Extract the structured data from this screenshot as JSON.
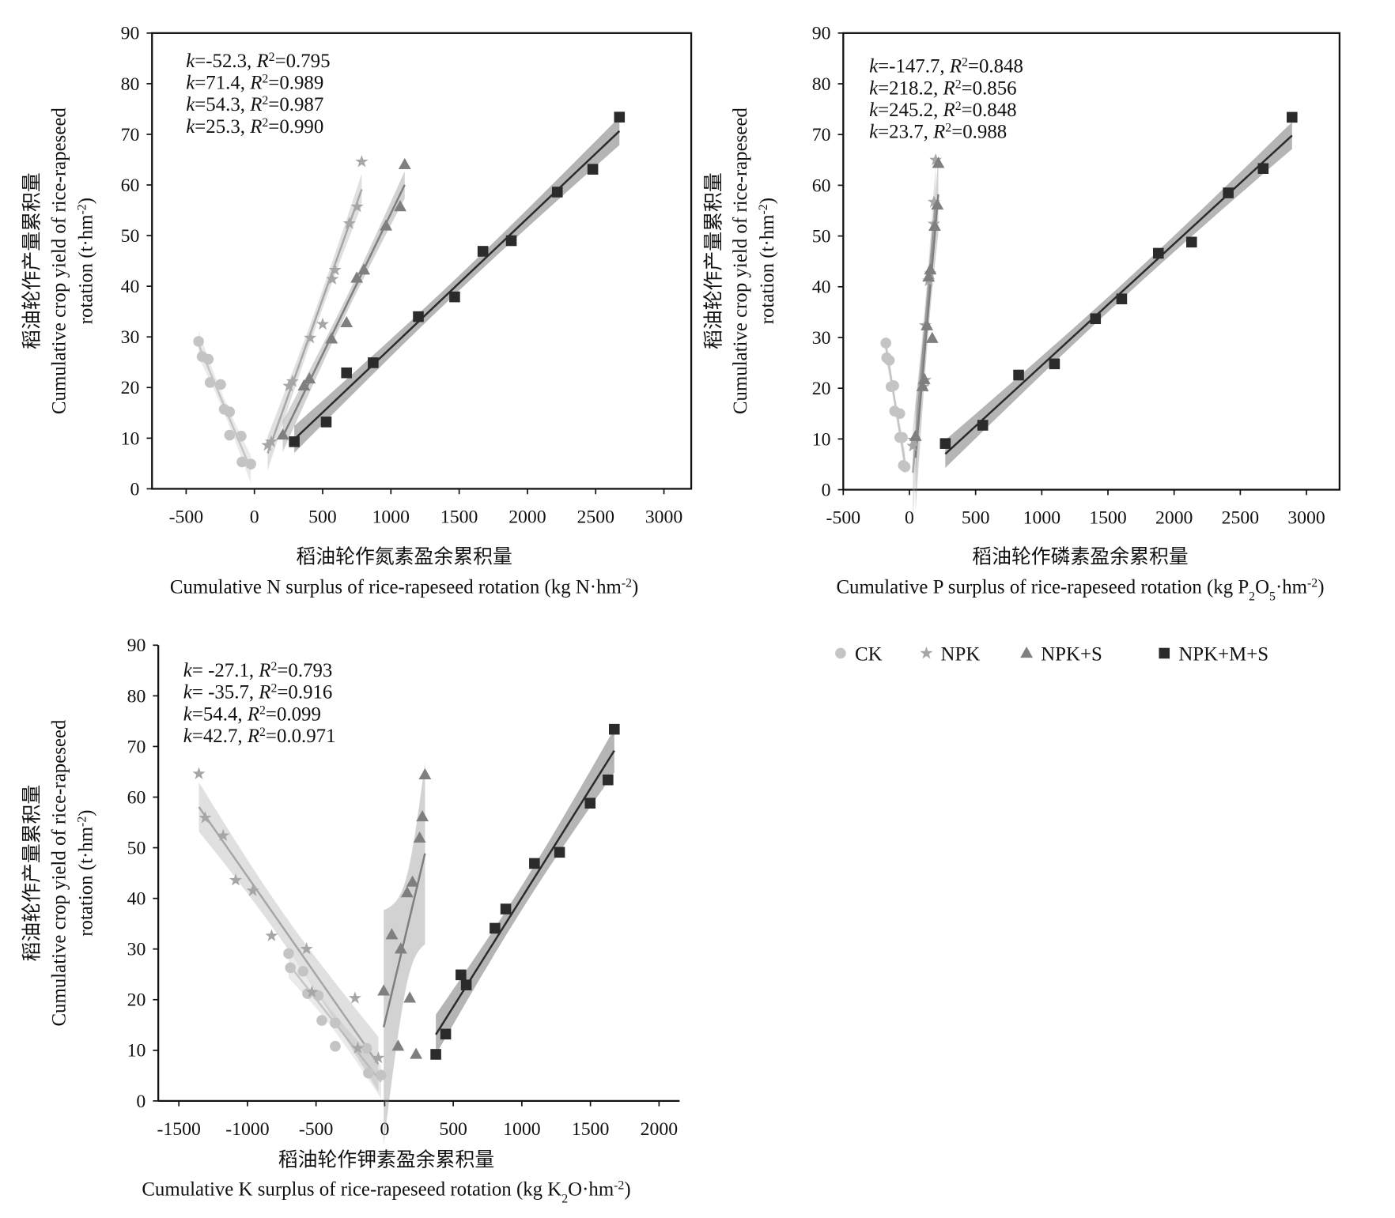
{
  "chart_data": [
    {
      "type": "scatter",
      "frame": true,
      "trendline": "linear",
      "xlim": [
        -750,
        3200
      ],
      "ylim": [
        0,
        90
      ],
      "xticks": [
        -500,
        0,
        500,
        1000,
        1500,
        2000,
        2500,
        3000
      ],
      "yticks": [
        0,
        10,
        20,
        30,
        40,
        50,
        60,
        70,
        80,
        90
      ],
      "ylabel": [
        [
          {
            "text": "稻油轮作产量累积量"
          }
        ],
        [
          {
            "text": "Cumulative crop yield of rice-rapeseed"
          }
        ],
        [
          {
            "text": "rotation (t·hm"
          },
          {
            "text": "-2",
            "position": "super"
          },
          {
            "text": ")"
          }
        ]
      ],
      "xlabel": [
        [
          {
            "text": "稻油轮作氮素盈余累积量"
          }
        ],
        [
          {
            "text": "Cumulative N surplus of rice-rapeseed rotation (kg N·hm"
          },
          {
            "text": "-2",
            "position": "super"
          },
          {
            "text": ")"
          }
        ]
      ],
      "annotations": [
        [
          {
            "text": "k",
            "style": "italic"
          },
          {
            "text": "=-52.3, "
          },
          {
            "text": "R",
            "style": "italic"
          },
          {
            "text": "2",
            "position": "super"
          },
          {
            "text": "=0.795"
          }
        ],
        [
          {
            "text": "k",
            "style": "italic"
          },
          {
            "text": "=71.4, "
          },
          {
            "text": "R",
            "style": "italic"
          },
          {
            "text": "2",
            "position": "super"
          },
          {
            "text": "=0.989"
          }
        ],
        [
          {
            "text": "k",
            "style": "italic"
          },
          {
            "text": "=54.3, "
          },
          {
            "text": "R",
            "style": "italic"
          },
          {
            "text": "2",
            "position": "super"
          },
          {
            "text": "=0.987"
          }
        ],
        [
          {
            "text": "k",
            "style": "italic"
          },
          {
            "text": "=25.3, "
          },
          {
            "text": "R",
            "style": "italic"
          },
          {
            "text": "2",
            "position": "super"
          },
          {
            "text": "=0.990"
          }
        ]
      ],
      "series": [
        {
          "name": "CK",
          "color": "#c4c4c4",
          "marker": "circle",
          "x": [
            -409,
            -383,
            -338,
            -325,
            -247,
            -221,
            -182,
            -182,
            -97,
            -91,
            -26
          ],
          "values": [
            29.1,
            26.1,
            25.6,
            21.0,
            20.6,
            15.7,
            15.2,
            10.6,
            10.4,
            5.3,
            4.9
          ]
        },
        {
          "name": "NPK",
          "color": "#a6a6a6",
          "marker": "star",
          "x": [
            97,
            123,
            253,
            279,
            409,
            500,
            571,
            591,
            695,
            753,
            786
          ],
          "values": [
            8.6,
            9.3,
            20.3,
            21.2,
            29.8,
            32.5,
            41.4,
            43.2,
            52.4,
            55.7,
            64.6
          ]
        },
        {
          "name": "NPK+S",
          "color": "#7f7f7f",
          "marker": "triangle",
          "x": [
            208,
            363,
            403,
            565,
            675,
            750,
            802,
            964,
            1068,
            1101
          ],
          "values": [
            10.6,
            20.3,
            21.7,
            29.6,
            32.8,
            41.6,
            43.2,
            51.9,
            55.7,
            64.0
          ]
        },
        {
          "name": "NPK+M+S",
          "color": "#2b2b2b",
          "marker": "square",
          "x": [
            292,
            526,
            675,
            870,
            1201,
            1467,
            1674,
            1882,
            2219,
            2479,
            2674
          ],
          "values": [
            9.3,
            13.2,
            22.9,
            24.9,
            34.0,
            37.9,
            46.9,
            49.0,
            58.6,
            63.1,
            73.4
          ]
        }
      ]
    },
    {
      "type": "scatter",
      "frame": true,
      "trendline": "linear",
      "legend": "below",
      "xlim": [
        -500,
        3250
      ],
      "ylim": [
        0,
        90
      ],
      "xticks": [
        -500,
        0,
        500,
        1000,
        1500,
        2000,
        2500,
        3000
      ],
      "yticks": [
        0,
        10,
        20,
        30,
        40,
        50,
        60,
        70,
        80,
        90
      ],
      "ylabel": [
        [
          {
            "text": "稻油轮作产量累积量"
          }
        ],
        [
          {
            "text": "Cumulative crop yield of rice-rapeseed"
          }
        ],
        [
          {
            "text": "rotation (t·hm"
          },
          {
            "text": "-2",
            "position": "super"
          },
          {
            "text": ")"
          }
        ]
      ],
      "xlabel": [
        [
          {
            "text": "稻油轮作磷素盈余累积量"
          }
        ],
        [
          {
            "text": "Cumulative P surplus of rice-rapeseed rotation (kg P"
          },
          {
            "text": "2",
            "position": "sub"
          },
          {
            "text": "O"
          },
          {
            "text": "5",
            "position": "sub"
          },
          {
            "text": "·hm"
          },
          {
            "text": "-2",
            "position": "super"
          },
          {
            "text": ")"
          }
        ]
      ],
      "annotations": [
        [
          {
            "text": "k",
            "style": "italic"
          },
          {
            "text": "=-147.7, "
          },
          {
            "text": "R",
            "style": "italic"
          },
          {
            "text": "2",
            "position": "super"
          },
          {
            "text": "=0.848"
          }
        ],
        [
          {
            "text": "k",
            "style": "italic"
          },
          {
            "text": "=218.2, "
          },
          {
            "text": "R",
            "style": "italic"
          },
          {
            "text": "2",
            "position": "super"
          },
          {
            "text": "=0.856"
          }
        ],
        [
          {
            "text": "k",
            "style": "italic"
          },
          {
            "text": "=245.2, "
          },
          {
            "text": "R",
            "style": "italic"
          },
          {
            "text": "2",
            "position": "super"
          },
          {
            "text": "=0.848"
          }
        ],
        [
          {
            "text": "k",
            "style": "italic"
          },
          {
            "text": "=23.7, "
          },
          {
            "text": "R",
            "style": "italic"
          },
          {
            "text": "2",
            "position": "super"
          },
          {
            "text": "=0.988"
          }
        ]
      ],
      "series": [
        {
          "name": "CK",
          "color": "#c4c4c4",
          "marker": "circle",
          "x": [
            -178,
            -172,
            -152,
            -139,
            -119,
            -112,
            -73,
            -73,
            -53,
            -46,
            -33
          ],
          "values": [
            28.9,
            26.0,
            25.5,
            20.3,
            20.5,
            15.5,
            15.0,
            10.3,
            10.3,
            4.8,
            4.5
          ]
        },
        {
          "name": "NPK",
          "color": "#a6a6a6",
          "marker": "star",
          "x": [
            26,
            33,
            106,
            119,
            119,
            145,
            158,
            185,
            185,
            198
          ],
          "values": [
            8.6,
            9.8,
            20.3,
            21.6,
            32.4,
            41.2,
            42.6,
            52.4,
            56.7,
            65.0
          ]
        },
        {
          "name": "NPK+S",
          "color": "#7f7f7f",
          "marker": "triangle",
          "x": [
            46,
            99,
            112,
            132,
            145,
            158,
            172,
            191,
            211,
            218
          ],
          "values": [
            10.5,
            20.3,
            21.7,
            32.3,
            41.9,
            43.3,
            29.8,
            51.9,
            56.1,
            64.3
          ]
        },
        {
          "name": "NPK+M+S",
          "color": "#2b2b2b",
          "marker": "square",
          "x": [
            271,
            554,
            825,
            1096,
            1406,
            1604,
            1881,
            2132,
            2409,
            2673,
            2891
          ],
          "values": [
            9.1,
            12.7,
            22.6,
            24.8,
            33.7,
            37.6,
            46.6,
            48.8,
            58.5,
            63.3,
            73.4
          ]
        }
      ]
    },
    {
      "type": "scatter",
      "frame": false,
      "trendline": "linear",
      "xlim": [
        -1650,
        2150
      ],
      "ylim": [
        0,
        90
      ],
      "xticks": [
        -1500,
        -1000,
        -500,
        0,
        500,
        1000,
        1500,
        2000
      ],
      "yticks": [
        0,
        10,
        20,
        30,
        40,
        50,
        60,
        70,
        80,
        90
      ],
      "ylabel": [
        [
          {
            "text": "稻油轮作产量累积量"
          }
        ],
        [
          {
            "text": "Cumulative crop yield of rice-rapeseed"
          }
        ],
        [
          {
            "text": "rotation (t·hm"
          },
          {
            "text": "-2",
            "position": "super"
          },
          {
            "text": ")"
          }
        ]
      ],
      "xlabel": [
        [
          {
            "text": "稻油轮作钾素盈余累积量"
          }
        ],
        [
          {
            "text": "Cumulative K surplus of rice-rapeseed rotation (kg K"
          },
          {
            "text": "2",
            "position": "sub"
          },
          {
            "text": "O·hm"
          },
          {
            "text": "-2",
            "position": "super"
          },
          {
            "text": ")"
          }
        ]
      ],
      "annotations": [
        [
          {
            "text": "k",
            "style": "italic"
          },
          {
            "text": "= -27.1, "
          },
          {
            "text": "R",
            "style": "italic"
          },
          {
            "text": "2",
            "position": "super"
          },
          {
            "text": "=0.793"
          }
        ],
        [
          {
            "text": "k",
            "style": "italic"
          },
          {
            "text": "= -35.7, "
          },
          {
            "text": "R",
            "style": "italic"
          },
          {
            "text": "2",
            "position": "super"
          },
          {
            "text": "=0.916"
          }
        ],
        [
          {
            "text": "k",
            "style": "italic"
          },
          {
            "text": "=54.4, "
          },
          {
            "text": "R",
            "style": "italic"
          },
          {
            "text": "2",
            "position": "super"
          },
          {
            "text": "=0.099"
          }
        ],
        [
          {
            "text": "k",
            "style": "italic"
          },
          {
            "text": "=42.7, "
          },
          {
            "text": "R",
            "style": "italic"
          },
          {
            "text": "2",
            "position": "super"
          },
          {
            "text": "=0.0.971"
          }
        ]
      ],
      "series": [
        {
          "name": "CK",
          "color": "#c4c4c4",
          "marker": "circle",
          "x": [
            -700,
            -687,
            -595,
            -562,
            -484,
            -458,
            -360,
            -360,
            -131,
            -118,
            -26
          ],
          "values": [
            29.1,
            26.3,
            25.6,
            21.2,
            20.8,
            15.9,
            15.4,
            10.8,
            10.4,
            5.5,
            5.1
          ]
        },
        {
          "name": "NPK",
          "color": "#a6a6a6",
          "marker": "star",
          "x": [
            -1354,
            -1308,
            -1177,
            -1086,
            -961,
            -824,
            -569,
            -530,
            -216,
            -196,
            -46
          ],
          "values": [
            64.6,
            55.9,
            52.4,
            43.6,
            41.5,
            32.6,
            30.0,
            21.5,
            20.3,
            10.4,
            8.5
          ]
        },
        {
          "name": "NPK+S",
          "color": "#7f7f7f",
          "marker": "triangle",
          "x": [
            -7,
            52,
            118,
            98,
            164,
            203,
            183,
            229,
            255,
            275,
            294
          ],
          "values": [
            21.7,
            32.8,
            30.0,
            10.8,
            41.1,
            43.2,
            20.3,
            9.2,
            51.9,
            56.1,
            64.4
          ]
        },
        {
          "name": "NPK+M+S",
          "color": "#2b2b2b",
          "marker": "square",
          "x": [
            373,
            445,
            556,
            595,
            804,
            883,
            1092,
            1275,
            1498,
            1628,
            1674
          ],
          "values": [
            9.2,
            13.2,
            24.9,
            22.9,
            34.1,
            37.9,
            46.9,
            49.1,
            58.8,
            63.4,
            73.4
          ]
        }
      ]
    }
  ]
}
